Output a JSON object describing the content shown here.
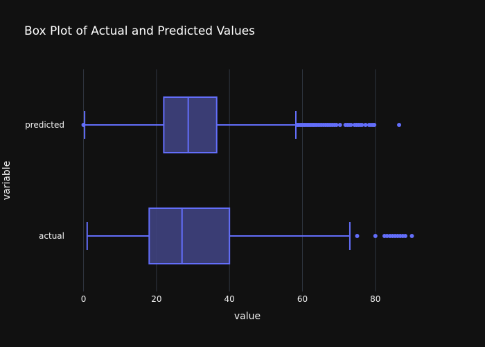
{
  "chart_data": {
    "type": "box",
    "orientation": "horizontal",
    "title": "Box Plot of Actual and Predicted Values",
    "xlabel": "value",
    "ylabel": "variable",
    "xlim": [
      -2,
      92
    ],
    "xticks": [
      0,
      20,
      40,
      60,
      80
    ],
    "grid": true,
    "colors": {
      "background": "#111111",
      "grid": "#2f3640",
      "box_stroke": "#636efa",
      "box_fill": "#3f437f",
      "text": "#f2f2f2"
    },
    "categories": [
      "predicted",
      "actual"
    ],
    "boxes": [
      {
        "category": "predicted",
        "lower_fence": 0.3,
        "q1": 22,
        "median": 28.7,
        "q3": 36.5,
        "upper_fence": 58.2,
        "outliers": [
          0,
          58.6,
          59,
          59.4,
          59.8,
          60.2,
          60.6,
          61,
          61.4,
          61.8,
          62.2,
          62.6,
          63,
          63.4,
          63.8,
          64.3,
          64.8,
          65.3,
          65.8,
          66.3,
          66.8,
          67.3,
          67.8,
          68.3,
          68.8,
          69.3,
          70.3,
          71.8,
          72.3,
          72.8,
          73.3,
          74.3,
          74.8,
          75.3,
          75.8,
          76.3,
          77.3,
          78.3,
          78.8,
          79.3,
          79.7,
          86.5
        ]
      },
      {
        "category": "actual",
        "lower_fence": 1,
        "q1": 18,
        "median": 27,
        "q3": 40,
        "upper_fence": 73,
        "outliers": [
          75,
          80,
          82.5,
          83.2,
          84,
          84.7,
          85.4,
          86.1,
          86.8,
          87.5,
          88.2,
          90
        ]
      }
    ]
  }
}
